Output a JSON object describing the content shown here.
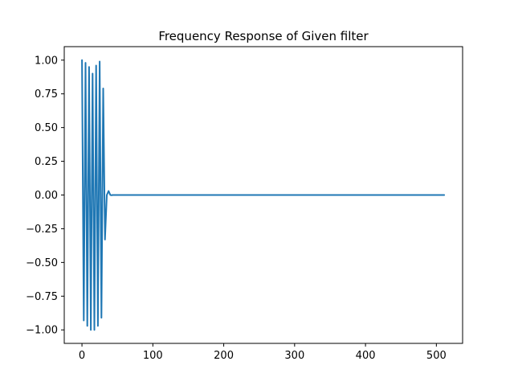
{
  "chart_data": {
    "type": "line",
    "title": "Frequency Response of Given filter",
    "xlabel": "",
    "ylabel": "",
    "xlim": [
      -25,
      537
    ],
    "ylim": [
      -1.1,
      1.1
    ],
    "grid": false,
    "line_color": "#1f77b4",
    "x_ticks": [
      0,
      100,
      200,
      300,
      400,
      500
    ],
    "y_ticks": [
      1.0,
      0.75,
      0.5,
      0.25,
      0.0,
      -0.25,
      -0.5,
      -0.75,
      -1.0
    ],
    "x_tick_labels": [
      "0",
      "100",
      "200",
      "300",
      "400",
      "500"
    ],
    "y_tick_labels": [
      "1.00",
      "0.75",
      "0.50",
      "0.25",
      "0.00",
      "−0.25",
      "−0.50",
      "−0.75",
      "−1.00"
    ],
    "series": [
      {
        "x": [
          0,
          2.5,
          5,
          7.5,
          10,
          12.5,
          15,
          17.5,
          20,
          22.5,
          25,
          27.5,
          30,
          32.5,
          35,
          37.5,
          40,
          42,
          43,
          45,
          47,
          50,
          60,
          100,
          200,
          300,
          400,
          511
        ],
        "values": [
          1.0,
          -0.93,
          0.98,
          -0.97,
          0.95,
          -1.0,
          0.9,
          -1.0,
          0.96,
          -0.97,
          0.99,
          -0.91,
          0.79,
          -0.33,
          0.0,
          0.03,
          0.0,
          -0.002,
          0.0,
          0.0,
          0.0,
          0.0,
          0.0,
          0.0,
          0.0,
          0.0,
          0.0,
          0.0
        ]
      }
    ]
  }
}
